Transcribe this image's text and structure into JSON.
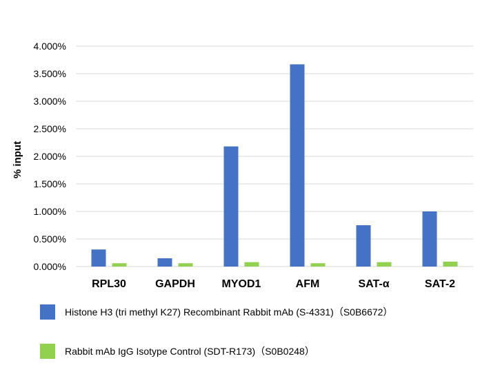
{
  "chart_data": {
    "type": "bar",
    "title": "",
    "xlabel": "",
    "ylabel": "% input",
    "ylim": [
      0,
      4
    ],
    "yticks": [
      "0.000%",
      "0.500%",
      "1.000%",
      "1.500%",
      "2.000%",
      "2.500%",
      "3.000%",
      "3.500%",
      "4.000%"
    ],
    "grid": true,
    "legend_position": "bottom",
    "categories": [
      "RPL30",
      "GAPDH",
      "MYOD1",
      "AFM",
      "SAT-α",
      "SAT-2"
    ],
    "series": [
      {
        "name": "Histone H3 (tri methyl K27) Recombinant Rabbit mAb (S-4331)（S0B6672）",
        "color": "#4472C4",
        "values": [
          0.31,
          0.15,
          2.18,
          3.67,
          0.75,
          1.0
        ]
      },
      {
        "name": "Rabbit mAb IgG Isotype Control (SDT-R173)（S0B0248）",
        "color": "#92D050",
        "values": [
          0.06,
          0.06,
          0.08,
          0.06,
          0.08,
          0.09
        ]
      }
    ]
  }
}
